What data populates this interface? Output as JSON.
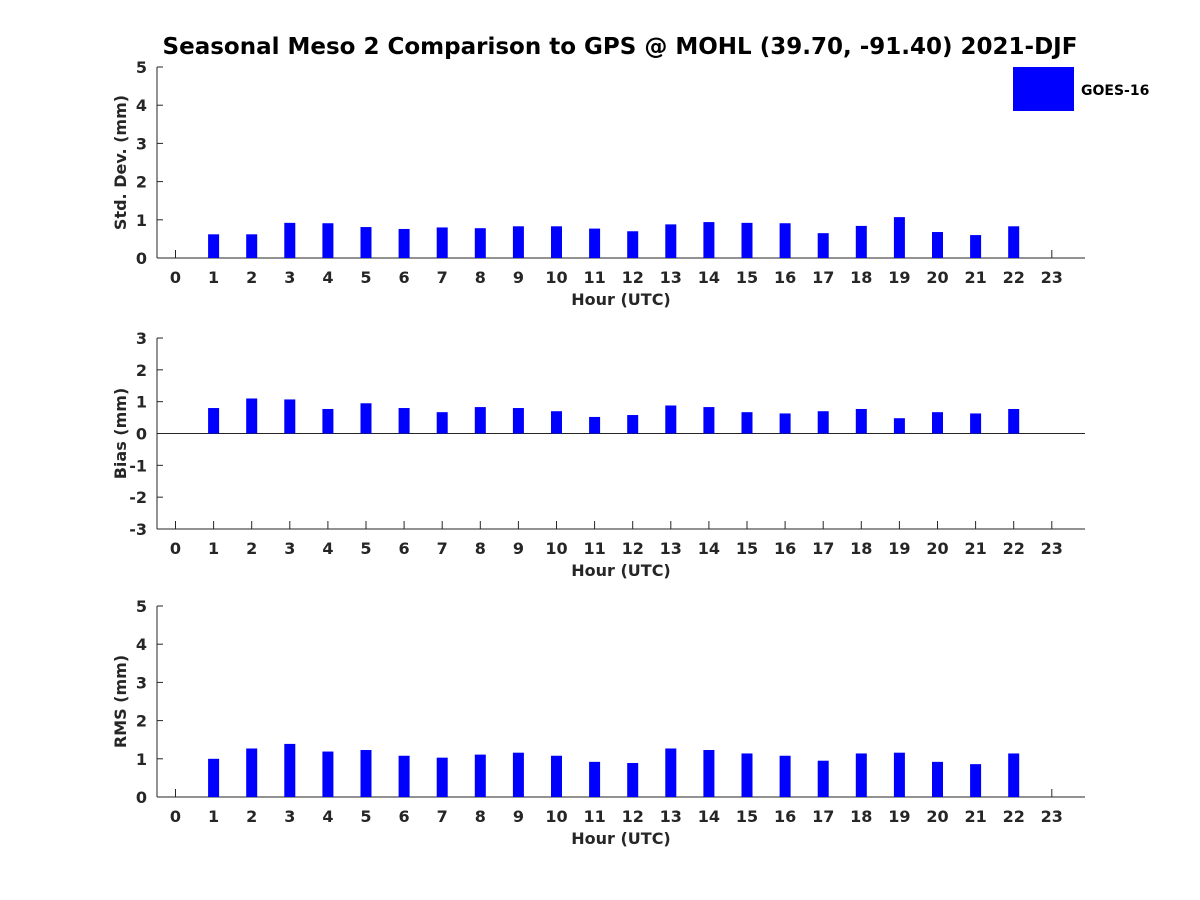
{
  "figure": {
    "title": "Seasonal Meso 2 Comparison to GPS @ MOHL (39.70, -91.40) 2021-DJF",
    "legend": {
      "label": "GOES-16",
      "color": "#0000ff",
      "placement": "top-right"
    }
  },
  "chart_data": [
    {
      "type": "bar",
      "panel": "std-dev",
      "xlabel": "Hour (UTC)",
      "ylabel": "Std. Dev. (mm)",
      "ylim": [
        0,
        5
      ],
      "yticks": [
        "0",
        "1",
        "2",
        "3",
        "4",
        "5"
      ],
      "categories": [
        "0",
        "1",
        "2",
        "3",
        "4",
        "5",
        "6",
        "7",
        "8",
        "9",
        "10",
        "11",
        "12",
        "13",
        "14",
        "15",
        "16",
        "17",
        "18",
        "19",
        "20",
        "21",
        "22",
        "23"
      ],
      "series": [
        {
          "name": "GOES-16",
          "color": "#0000ff",
          "values": [
            null,
            0.62,
            0.62,
            0.92,
            0.91,
            0.81,
            0.76,
            0.8,
            0.78,
            0.83,
            0.83,
            0.77,
            0.7,
            0.88,
            0.94,
            0.92,
            0.91,
            0.65,
            0.84,
            1.07,
            0.68,
            0.6,
            0.83,
            null
          ]
        }
      ]
    },
    {
      "type": "bar",
      "panel": "bias",
      "xlabel": "Hour (UTC)",
      "ylabel": "Bias (mm)",
      "ylim": [
        -3,
        3
      ],
      "yticks": [
        "-3",
        "-2",
        "-1",
        "0",
        "1",
        "2",
        "3"
      ],
      "zero_line": true,
      "categories": [
        "0",
        "1",
        "2",
        "3",
        "4",
        "5",
        "6",
        "7",
        "8",
        "9",
        "10",
        "11",
        "12",
        "13",
        "14",
        "15",
        "16",
        "17",
        "18",
        "19",
        "20",
        "21",
        "22",
        "23"
      ],
      "series": [
        {
          "name": "GOES-16",
          "color": "#0000ff",
          "values": [
            null,
            0.8,
            1.1,
            1.07,
            0.77,
            0.95,
            0.8,
            0.67,
            0.83,
            0.8,
            0.7,
            0.52,
            0.58,
            0.88,
            0.83,
            0.67,
            0.63,
            0.7,
            0.77,
            0.48,
            0.67,
            0.63,
            0.77,
            null
          ]
        }
      ]
    },
    {
      "type": "bar",
      "panel": "rms",
      "xlabel": "Hour (UTC)",
      "ylabel": "RMS (mm)",
      "ylim": [
        0,
        5
      ],
      "yticks": [
        "0",
        "1",
        "2",
        "3",
        "4",
        "5"
      ],
      "categories": [
        "0",
        "1",
        "2",
        "3",
        "4",
        "5",
        "6",
        "7",
        "8",
        "9",
        "10",
        "11",
        "12",
        "13",
        "14",
        "15",
        "16",
        "17",
        "18",
        "19",
        "20",
        "21",
        "22",
        "23"
      ],
      "series": [
        {
          "name": "GOES-16",
          "color": "#0000ff",
          "values": [
            null,
            1.0,
            1.27,
            1.39,
            1.19,
            1.23,
            1.08,
            1.03,
            1.11,
            1.16,
            1.08,
            0.92,
            0.89,
            1.27,
            1.23,
            1.14,
            1.08,
            0.95,
            1.14,
            1.16,
            0.92,
            0.86,
            1.14,
            null
          ]
        }
      ]
    }
  ]
}
